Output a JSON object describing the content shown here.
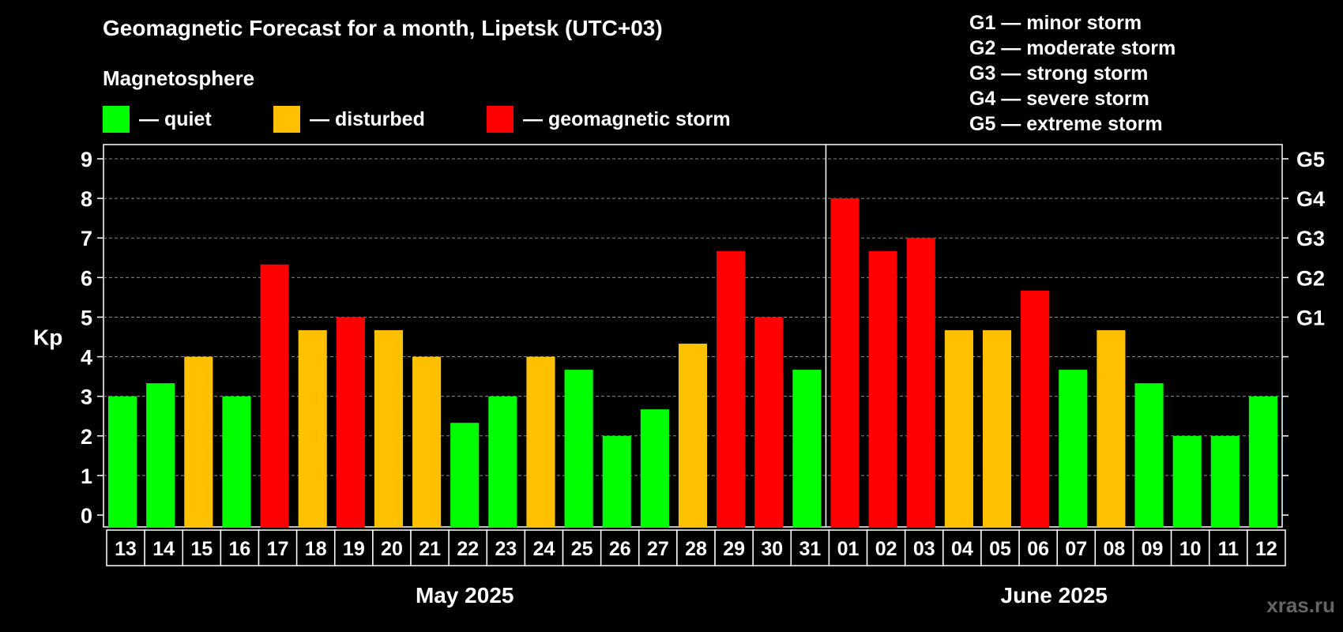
{
  "header": {
    "title": "Geomagnetic Forecast for a month, Lipetsk (UTC+03)",
    "subtitle": "Magnetosphere"
  },
  "legend": [
    {
      "label": "— quiet",
      "color": "#00ff00"
    },
    {
      "label": "— disturbed",
      "color": "#ffc000"
    },
    {
      "label": "— geomagnetic storm",
      "color": "#ff0000"
    }
  ],
  "storm_scale": [
    "G1 — minor storm",
    "G2 — moderate storm",
    "G3 — strong storm",
    "G4 — severe storm",
    "G5 — extreme storm"
  ],
  "watermark": "xras.ru",
  "chart_data": {
    "type": "bar",
    "title": "Geomagnetic Forecast for a month, Lipetsk (UTC+03)",
    "ylabel": "Kp",
    "ylim": [
      0,
      9
    ],
    "yticks": [
      "0",
      "1",
      "2",
      "3",
      "4",
      "5",
      "6",
      "7",
      "8",
      "9"
    ],
    "right_axis_labels": [
      {
        "value": 5,
        "label": "G1"
      },
      {
        "value": 6,
        "label": "G2"
      },
      {
        "value": 7,
        "label": "G3"
      },
      {
        "value": 8,
        "label": "G4"
      },
      {
        "value": 9,
        "label": "G5"
      }
    ],
    "grid": true,
    "categories": [
      "13",
      "14",
      "15",
      "16",
      "17",
      "18",
      "19",
      "20",
      "21",
      "22",
      "23",
      "24",
      "25",
      "26",
      "27",
      "28",
      "29",
      "30",
      "31",
      "01",
      "02",
      "03",
      "04",
      "05",
      "06",
      "07",
      "08",
      "09",
      "10",
      "11",
      "12"
    ],
    "values": [
      3,
      3.33,
      4,
      3,
      6.33,
      4.67,
      5,
      4.67,
      4,
      2.33,
      3,
      4,
      3.67,
      2,
      2.67,
      4.33,
      6.67,
      5,
      3.67,
      8,
      6.67,
      7,
      4.67,
      4.67,
      5.67,
      3.67,
      4.67,
      3.33,
      2,
      2,
      3
    ],
    "colors": [
      "#00ff00",
      "#00ff00",
      "#ffc000",
      "#00ff00",
      "#ff0000",
      "#ffc000",
      "#ff0000",
      "#ffc000",
      "#ffc000",
      "#00ff00",
      "#00ff00",
      "#ffc000",
      "#00ff00",
      "#00ff00",
      "#00ff00",
      "#ffc000",
      "#ff0000",
      "#ff0000",
      "#00ff00",
      "#ff0000",
      "#ff0000",
      "#ff0000",
      "#ffc000",
      "#ffc000",
      "#ff0000",
      "#00ff00",
      "#ffc000",
      "#00ff00",
      "#00ff00",
      "#00ff00",
      "#00ff00"
    ],
    "months": [
      {
        "label": "May 2025",
        "start_index": 0,
        "end_index": 18
      },
      {
        "label": "June 2025",
        "start_index": 19,
        "end_index": 30
      }
    ]
  }
}
